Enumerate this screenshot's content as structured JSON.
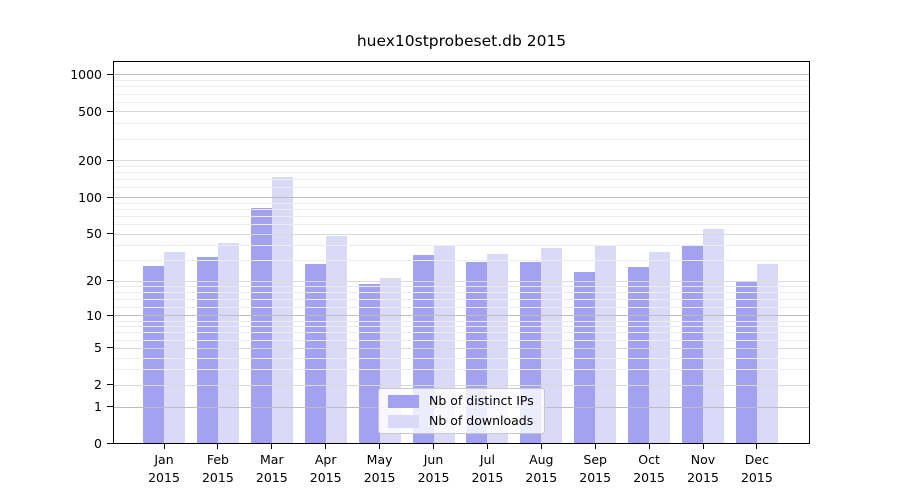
{
  "chart_data": {
    "type": "bar",
    "title": "huex10stprobeset.db 2015",
    "categories": [
      "Jan",
      "Feb",
      "Mar",
      "Apr",
      "May",
      "Jun",
      "Jul",
      "Aug",
      "Sep",
      "Oct",
      "Nov",
      "Dec"
    ],
    "year": "2015",
    "series": [
      {
        "name": "Nb of distinct IPs",
        "color": "#a2a2f0",
        "values": [
          27,
          32,
          82,
          28,
          19,
          33,
          29,
          29,
          24,
          26,
          39,
          20
        ]
      },
      {
        "name": "Nb of downloads",
        "color": "#dadaf8",
        "values": [
          35,
          42,
          147,
          48,
          21,
          40,
          34,
          38,
          39,
          35,
          55,
          28
        ]
      }
    ],
    "yticks": [
      0,
      1,
      2,
      5,
      10,
      20,
      50,
      100,
      200,
      500,
      1000
    ],
    "scale": "log1p",
    "ylim": [
      0,
      1290
    ],
    "xlabel": "",
    "ylabel": "",
    "grid": true,
    "legend_position": "lower center"
  },
  "colors": {
    "grid_major": "#bdbdbd",
    "grid_mid": "#d9d9d9",
    "grid_minor": "#ececec",
    "spine": "#000000",
    "background": "#ffffff"
  }
}
